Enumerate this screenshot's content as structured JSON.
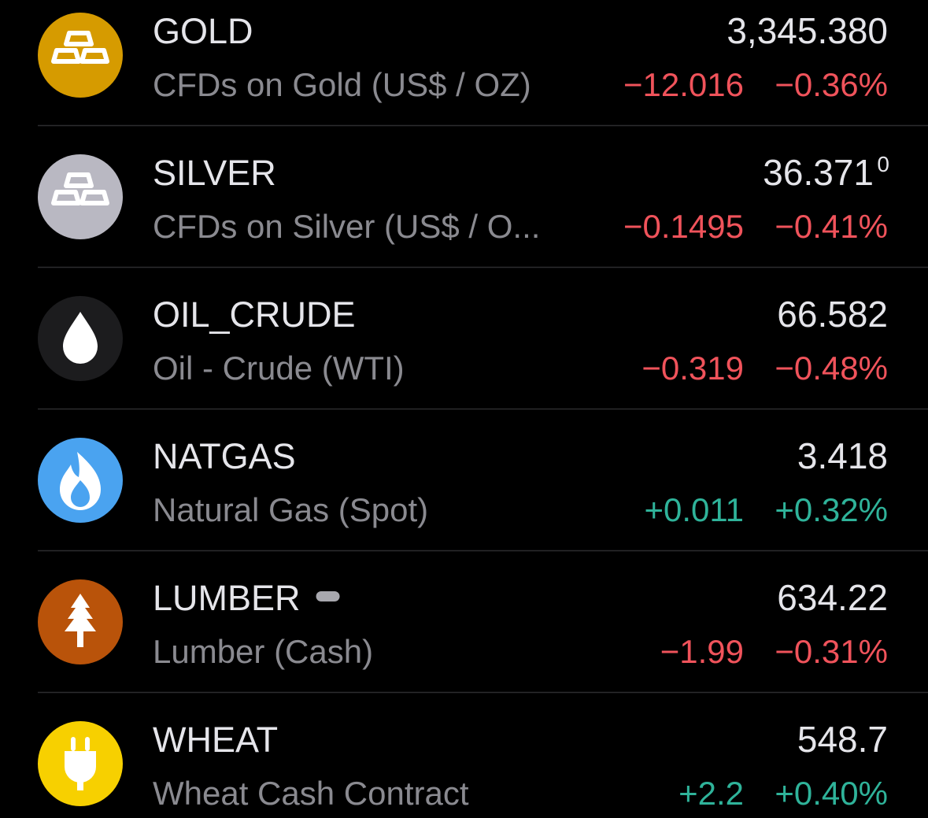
{
  "watchlist": {
    "rows": [
      {
        "symbol": "GOLD",
        "name": "CFDs on Gold (US$ / OZ)",
        "price": "3,345.380",
        "change": "−12.016",
        "change_pct": "−0.36%"
      },
      {
        "symbol": "SILVER",
        "name": "CFDs on Silver (US$ / O...",
        "price": "36.371",
        "price_superscript": "0",
        "change": "−0.1495",
        "change_pct": "−0.41%"
      },
      {
        "symbol": "OIL_CRUDE",
        "name": "Oil - Crude (WTI)",
        "price": "66.582",
        "change": "−0.319",
        "change_pct": "−0.48%"
      },
      {
        "symbol": "NATGAS",
        "name": "Natural Gas (Spot)",
        "price": "3.418",
        "change": "+0.011",
        "change_pct": "+0.32%"
      },
      {
        "symbol": "LUMBER",
        "name": "Lumber (Cash)",
        "price": "634.22",
        "change": "−1.99",
        "change_pct": "−0.31%"
      },
      {
        "symbol": "WHEAT",
        "name": "Wheat Cash Contract",
        "price": "548.7",
        "change": "+2.2",
        "change_pct": "+0.40%"
      }
    ]
  }
}
